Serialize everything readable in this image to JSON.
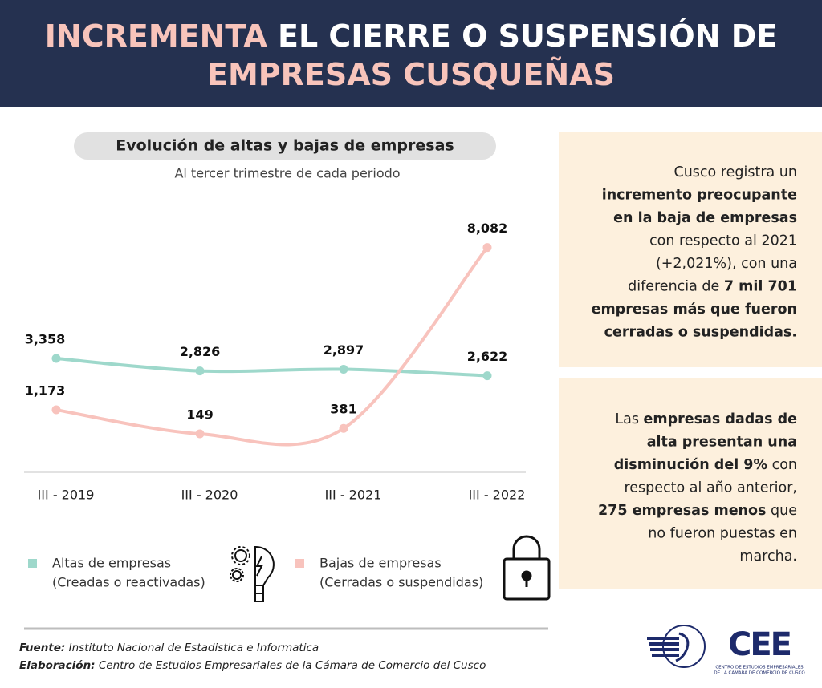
{
  "header": {
    "title": [
      {
        "text": "INCREMENTA",
        "accent": true
      },
      {
        "text": " EL CIERRE O SUSPENSIÓN DE",
        "accent": false
      },
      {
        "text": "EMPRESAS CUSQUEÑAS",
        "accent": true,
        "newline": true
      }
    ]
  },
  "chart_data": {
    "type": "line",
    "title": "Evolución de altas y bajas de empresas",
    "subtitle": "Al tercer trimestre de cada periodo",
    "categories": [
      "III - 2019",
      "III - 2020",
      "III - 2021",
      "III - 2022"
    ],
    "series": [
      {
        "name": "Altas de empresas",
        "detail": "(Creadas o reactivadas)",
        "color": "#9ed8cb",
        "values": [
          3358,
          2826,
          2897,
          2622
        ],
        "value_labels": [
          "3,358",
          "2,826",
          "2,897",
          "2,622"
        ]
      },
      {
        "name": "Bajas de empresas",
        "detail": "(Cerradas o suspendidas)",
        "color": "#f8c3bd",
        "values": [
          1173,
          149,
          381,
          8082
        ],
        "value_labels": [
          "1,173",
          "149",
          "381",
          "8,082"
        ]
      }
    ]
  },
  "panels": [
    {
      "lines": [
        [
          {
            "text": "Cusco registra un",
            "bold": false
          }
        ],
        [
          {
            "text": "incremento preocupante",
            "bold": true
          }
        ],
        [
          {
            "text": "en la baja de empresas",
            "bold": true
          }
        ],
        [
          {
            "text": "con respecto al 2021",
            "bold": false
          }
        ],
        [
          {
            "text": "(+2,021%), con una",
            "bold": false
          }
        ],
        [
          {
            "text": "diferencia de ",
            "bold": false
          },
          {
            "text": "7 mil 701",
            "bold": true
          }
        ],
        [
          {
            "text": "empresas más  que fueron",
            "bold": true
          }
        ],
        [
          {
            "text": "cerradas o suspendidas.",
            "bold": true
          }
        ]
      ]
    },
    {
      "lines": [
        [
          {
            "text": "Las ",
            "bold": false
          },
          {
            "text": "empresas dadas de",
            "bold": true
          }
        ],
        [
          {
            "text": "alta presentan una",
            "bold": true
          }
        ],
        [
          {
            "text": "disminución del 9%",
            "bold": true
          },
          {
            "text": " con",
            "bold": false
          }
        ],
        [
          {
            "text": "respecto al año anterior,",
            "bold": false
          }
        ],
        [
          {
            "text": "275 empresas menos",
            "bold": true
          },
          {
            "text": " que",
            "bold": false
          }
        ],
        [
          {
            "text": "no fueron puestas en",
            "bold": false
          }
        ],
        [
          {
            "text": "marcha.",
            "bold": false
          }
        ]
      ]
    }
  ],
  "footer": [
    {
      "label": "Fuente:",
      "text": " Instituto Nacional de Estadistica e Informatica"
    },
    {
      "label": "Elaboración:",
      "text": " Centro de Estudios Empresariales de la Cámara de Comercio del Cusco"
    }
  ],
  "logo": {
    "mark": "CEE",
    "caption": [
      "CENTRO DE ESTUDIOS EMPRESARIALES",
      "DE LA CÁMARA DE COMERCIO DE CUSCO"
    ]
  }
}
